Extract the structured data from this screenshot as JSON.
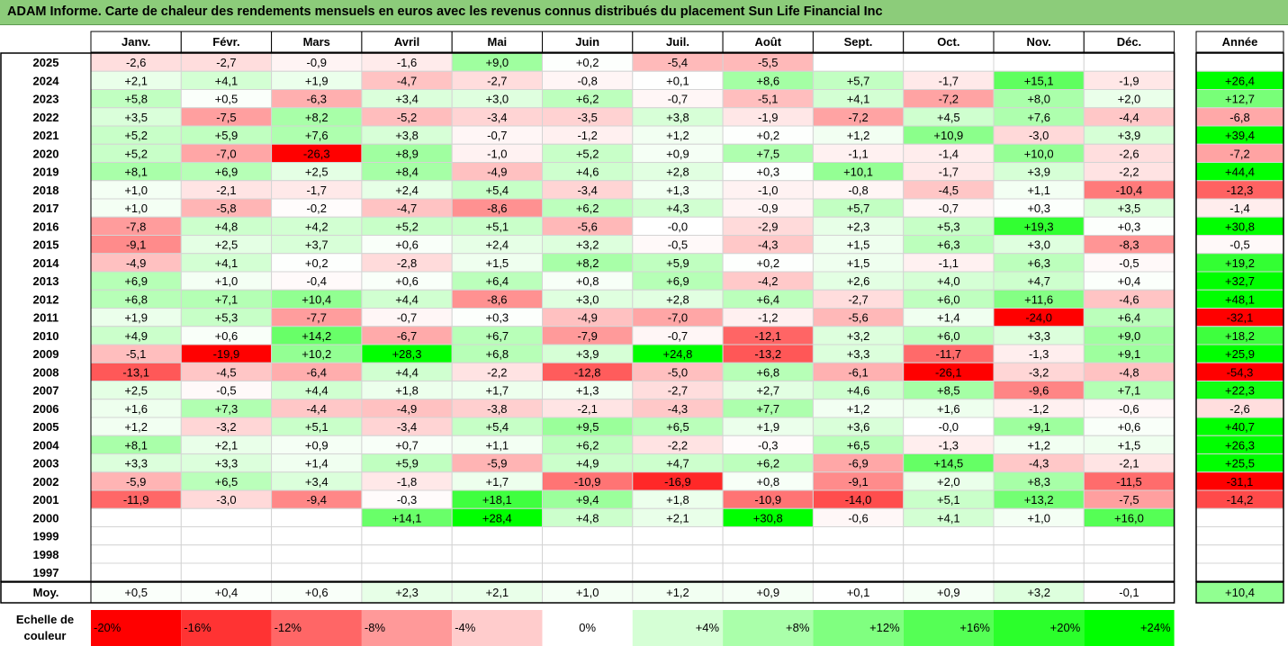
{
  "chart_data": {
    "type": "heatmap",
    "title": "ADAM Informe. Carte de chaleur des rendements mensuels en euros avec les revenus connus distribués du placement Sun Life Financial Inc",
    "months": [
      "Janv.",
      "Févr.",
      "Mars",
      "Avril",
      "Mai",
      "Juin",
      "Juil.",
      "Août",
      "Sept.",
      "Oct.",
      "Nov.",
      "Déc."
    ],
    "year_header": "Année",
    "rows": [
      {
        "year": "2025",
        "values": [
          "-2,6",
          "-2,7",
          "-0,9",
          "-1,6",
          "+9,0",
          "+0,2",
          "-5,4",
          "-5,5",
          "",
          "",
          "",
          ""
        ],
        "annual": ""
      },
      {
        "year": "2024",
        "values": [
          "+2,1",
          "+4,1",
          "+1,9",
          "-4,7",
          "-2,7",
          "-0,8",
          "+0,1",
          "+8,6",
          "+5,7",
          "-1,7",
          "+15,1",
          "-1,9"
        ],
        "annual": "+26,4"
      },
      {
        "year": "2023",
        "values": [
          "+5,8",
          "+0,5",
          "-6,3",
          "+3,4",
          "+3,0",
          "+6,2",
          "-0,7",
          "-5,1",
          "+4,1",
          "-7,2",
          "+8,0",
          "+2,0"
        ],
        "annual": "+12,7"
      },
      {
        "year": "2022",
        "values": [
          "+3,5",
          "-7,5",
          "+8,2",
          "-5,2",
          "-3,4",
          "-3,5",
          "+3,8",
          "-1,9",
          "-7,2",
          "+4,5",
          "+7,6",
          "-4,4"
        ],
        "annual": "-6,8"
      },
      {
        "year": "2021",
        "values": [
          "+5,2",
          "+5,9",
          "+7,6",
          "+3,8",
          "-0,7",
          "-1,2",
          "+1,2",
          "+0,2",
          "+1,2",
          "+10,9",
          "-3,0",
          "+3,9"
        ],
        "annual": "+39,4"
      },
      {
        "year": "2020",
        "values": [
          "+5,2",
          "-7,0",
          "-26,3",
          "+8,9",
          "-1,0",
          "+5,2",
          "+0,9",
          "+7,5",
          "-1,1",
          "-1,4",
          "+10,0",
          "-2,6"
        ],
        "annual": "-7,2"
      },
      {
        "year": "2019",
        "values": [
          "+8,1",
          "+6,9",
          "+2,5",
          "+8,4",
          "-4,9",
          "+4,6",
          "+2,8",
          "+0,3",
          "+10,1",
          "-1,7",
          "+3,9",
          "-2,2"
        ],
        "annual": "+44,4"
      },
      {
        "year": "2018",
        "values": [
          "+1,0",
          "-2,1",
          "-1,7",
          "+2,4",
          "+5,4",
          "-3,4",
          "+1,3",
          "-1,0",
          "-0,8",
          "-4,5",
          "+1,1",
          "-10,4"
        ],
        "annual": "-12,3"
      },
      {
        "year": "2017",
        "values": [
          "+1,0",
          "-5,8",
          "-0,2",
          "-4,7",
          "-8,6",
          "+6,2",
          "+4,3",
          "-0,9",
          "+5,7",
          "-0,7",
          "+0,3",
          "+3,5"
        ],
        "annual": "-1,4"
      },
      {
        "year": "2016",
        "values": [
          "-7,8",
          "+4,8",
          "+4,2",
          "+5,2",
          "+5,1",
          "-5,6",
          "-0,0",
          "-2,9",
          "+2,3",
          "+5,3",
          "+19,3",
          "+0,3"
        ],
        "annual": "+30,8"
      },
      {
        "year": "2015",
        "values": [
          "-9,1",
          "+2,5",
          "+3,7",
          "+0,6",
          "+2,4",
          "+3,2",
          "-0,5",
          "-4,3",
          "+1,5",
          "+6,3",
          "+3,0",
          "-8,3"
        ],
        "annual": "-0,5"
      },
      {
        "year": "2014",
        "values": [
          "-4,9",
          "+4,1",
          "+0,2",
          "-2,8",
          "+1,5",
          "+8,2",
          "+5,9",
          "+0,2",
          "+1,5",
          "-1,1",
          "+6,3",
          "-0,5"
        ],
        "annual": "+19,2"
      },
      {
        "year": "2013",
        "values": [
          "+6,9",
          "+1,0",
          "-0,4",
          "+0,6",
          "+6,4",
          "+0,8",
          "+6,9",
          "-4,2",
          "+2,6",
          "+4,0",
          "+4,7",
          "+0,4"
        ],
        "annual": "+32,7"
      },
      {
        "year": "2012",
        "values": [
          "+6,8",
          "+7,1",
          "+10,4",
          "+4,4",
          "-8,6",
          "+3,0",
          "+2,8",
          "+6,4",
          "-2,7",
          "+6,0",
          "+11,6",
          "-4,6"
        ],
        "annual": "+48,1"
      },
      {
        "year": "2011",
        "values": [
          "+1,9",
          "+5,3",
          "-7,7",
          "-0,7",
          "+0,3",
          "-4,9",
          "-7,0",
          "-1,2",
          "-5,6",
          "+1,4",
          "-24,0",
          "+6,4"
        ],
        "annual": "-32,1"
      },
      {
        "year": "2010",
        "values": [
          "+4,9",
          "+0,6",
          "+14,2",
          "-6,7",
          "+6,7",
          "-7,9",
          "-0,7",
          "-12,1",
          "+3,2",
          "+6,0",
          "+3,3",
          "+9,0"
        ],
        "annual": "+18,2"
      },
      {
        "year": "2009",
        "values": [
          "-5,1",
          "-19,9",
          "+10,2",
          "+28,3",
          "+6,8",
          "+3,9",
          "+24,8",
          "-13,2",
          "+3,3",
          "-11,7",
          "-1,3",
          "+9,1"
        ],
        "annual": "+25,9"
      },
      {
        "year": "2008",
        "values": [
          "-13,1",
          "-4,5",
          "-6,4",
          "+4,4",
          "-2,2",
          "-12,8",
          "-5,0",
          "+6,8",
          "-6,1",
          "-26,1",
          "-3,2",
          "-4,8"
        ],
        "annual": "-54,3"
      },
      {
        "year": "2007",
        "values": [
          "+2,5",
          "-0,5",
          "+4,4",
          "+1,8",
          "+1,7",
          "+1,3",
          "-2,7",
          "+2,7",
          "+4,6",
          "+8,5",
          "-9,6",
          "+7,1"
        ],
        "annual": "+22,3"
      },
      {
        "year": "2006",
        "values": [
          "+1,6",
          "+7,3",
          "-4,4",
          "-4,9",
          "-3,8",
          "-2,1",
          "-4,3",
          "+7,7",
          "+1,2",
          "+1,6",
          "-1,2",
          "-0,6"
        ],
        "annual": "-2,6"
      },
      {
        "year": "2005",
        "values": [
          "+1,2",
          "-3,2",
          "+5,1",
          "-3,4",
          "+5,4",
          "+9,5",
          "+6,5",
          "+1,9",
          "+3,6",
          "-0,0",
          "+9,1",
          "+0,6"
        ],
        "annual": "+40,7"
      },
      {
        "year": "2004",
        "values": [
          "+8,1",
          "+2,1",
          "+0,9",
          "+0,7",
          "+1,1",
          "+6,2",
          "-2,2",
          "-0,3",
          "+6,5",
          "-1,3",
          "+1,2",
          "+1,5"
        ],
        "annual": "+26,3"
      },
      {
        "year": "2003",
        "values": [
          "+3,3",
          "+3,3",
          "+1,4",
          "+5,9",
          "-5,9",
          "+4,9",
          "+4,7",
          "+6,2",
          "-6,9",
          "+14,5",
          "-4,3",
          "-2,1"
        ],
        "annual": "+25,5"
      },
      {
        "year": "2002",
        "values": [
          "-5,9",
          "+6,5",
          "+3,4",
          "-1,8",
          "+1,7",
          "-10,9",
          "-16,9",
          "+0,8",
          "-9,1",
          "+2,0",
          "+8,3",
          "-11,5"
        ],
        "annual": "-31,1"
      },
      {
        "year": "2001",
        "values": [
          "-11,9",
          "-3,0",
          "-9,4",
          "-0,3",
          "+18,1",
          "+9,4",
          "+1,8",
          "-10,9",
          "-14,0",
          "+5,1",
          "+13,2",
          "-7,5"
        ],
        "annual": "-14,2"
      },
      {
        "year": "2000",
        "values": [
          "",
          "",
          "",
          "+14,1",
          "+28,4",
          "+4,8",
          "+2,1",
          "+30,8",
          "-0,6",
          "+4,1",
          "+1,0",
          "+16,0"
        ],
        "annual": ""
      },
      {
        "year": "1999",
        "values": [
          "",
          "",
          "",
          "",
          "",
          "",
          "",
          "",
          "",
          "",
          "",
          ""
        ],
        "annual": ""
      },
      {
        "year": "1998",
        "values": [
          "",
          "",
          "",
          "",
          "",
          "",
          "",
          "",
          "",
          "",
          "",
          ""
        ],
        "annual": ""
      },
      {
        "year": "1997",
        "values": [
          "",
          "",
          "",
          "",
          "",
          "",
          "",
          "",
          "",
          "",
          "",
          ""
        ],
        "annual": ""
      }
    ],
    "average": {
      "label": "Moy.",
      "values": [
        "+0,5",
        "+0,4",
        "+0,6",
        "+2,3",
        "+2,1",
        "+1,0",
        "+1,2",
        "+0,9",
        "+0,1",
        "+0,9",
        "+3,2",
        "-0,1"
      ],
      "annual": "+10,4"
    },
    "color_scale": {
      "label": "Echelle de couleur",
      "stops": [
        {
          "label": "-20%",
          "value": -20
        },
        {
          "label": "-16%",
          "value": -16
        },
        {
          "label": "-12%",
          "value": -12
        },
        {
          "label": "-8%",
          "value": -8
        },
        {
          "label": "-4%",
          "value": -4
        },
        {
          "label": "0%",
          "value": 0
        },
        {
          "label": "+4%",
          "value": 4
        },
        {
          "label": "+8%",
          "value": 8
        },
        {
          "label": "+12%",
          "value": 12
        },
        {
          "label": "+16%",
          "value": 16
        },
        {
          "label": "+20%",
          "value": 20
        },
        {
          "label": "+24%",
          "value": 24
        }
      ],
      "colors": {
        "max_negative": "#ff0000",
        "neutral": "#ffffff",
        "max_positive": "#00ff00"
      }
    }
  }
}
